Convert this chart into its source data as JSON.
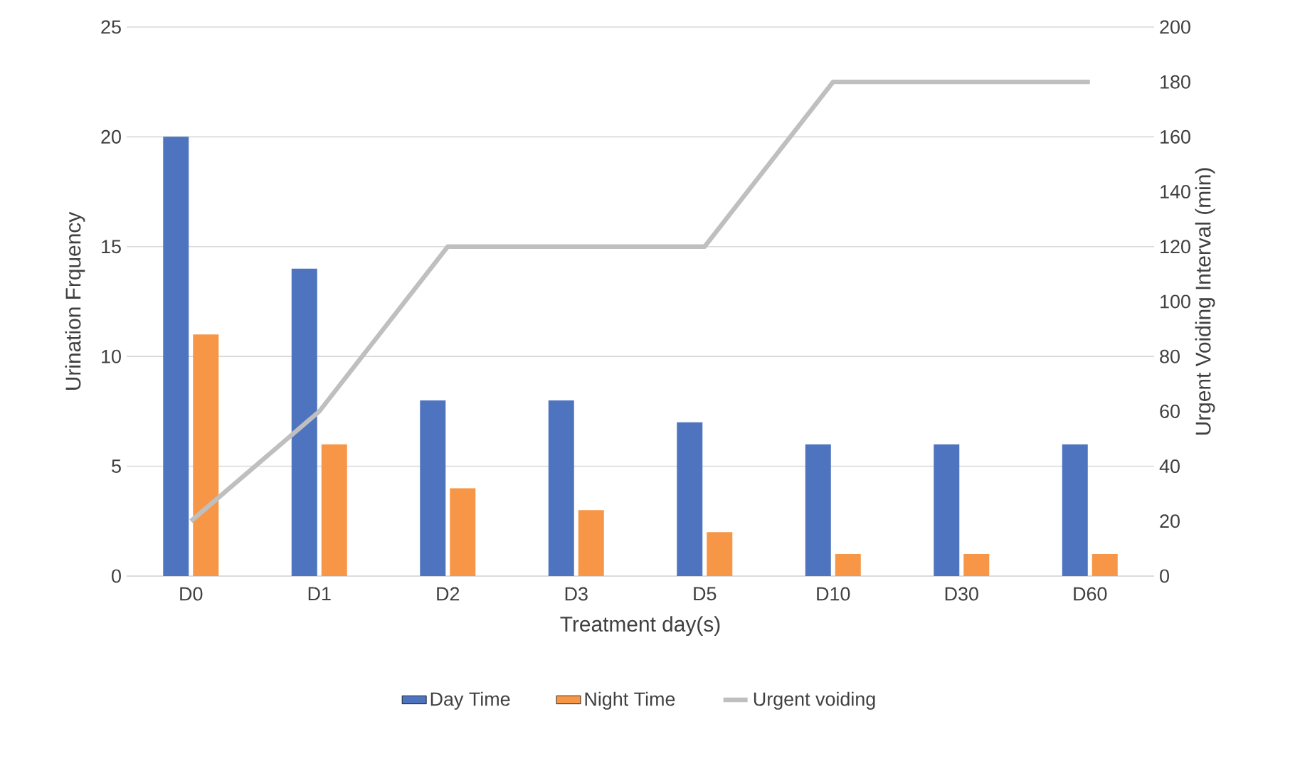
{
  "chart_data": {
    "type": "bar",
    "xlabel": "Treatment day(s)",
    "ylabel": "Urination Frquency",
    "y2label": "Urgent Voiding Interval (min)",
    "categories": [
      "D0",
      "D1",
      "D2",
      "D3",
      "D5",
      "D10",
      "D30",
      "D60"
    ],
    "series": [
      {
        "name": "Day Time",
        "color": "#4f74bf",
        "values": [
          20,
          14,
          8,
          8,
          7,
          6,
          6,
          6
        ]
      },
      {
        "name": "Night Time",
        "color": "#f79646",
        "values": [
          11,
          6,
          4,
          3,
          2,
          1,
          1,
          1
        ]
      },
      {
        "name": "Urgent voiding",
        "type": "line",
        "axis": "y2",
        "color": "#bfbfbf",
        "values": [
          20,
          60,
          120,
          120,
          120,
          180,
          180,
          180
        ]
      }
    ],
    "ylim": [
      0,
      25
    ],
    "yticks": [
      0,
      5,
      10,
      15,
      20,
      25
    ],
    "y2lim": [
      0,
      200
    ],
    "y2ticks": [
      0,
      20,
      40,
      60,
      80,
      100,
      120,
      140,
      160,
      180,
      200
    ],
    "grid": "y",
    "legend": "bottom"
  }
}
